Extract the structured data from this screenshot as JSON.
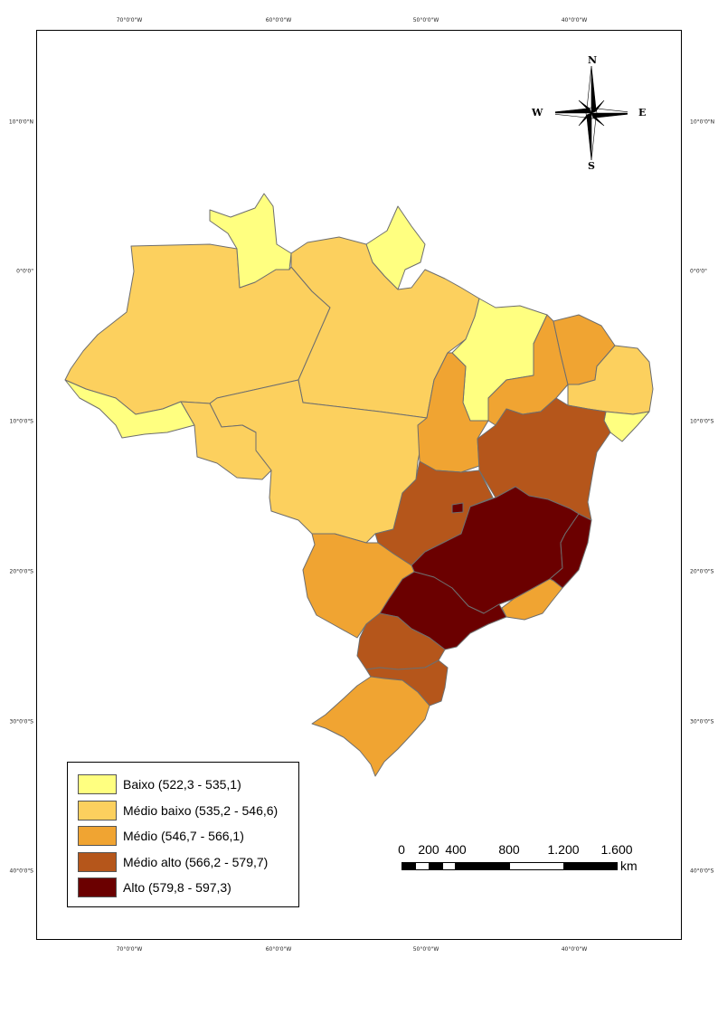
{
  "map": {
    "colors": {
      "baixo": "#ffff80",
      "medio_baixo": "#fcd05e",
      "medio": "#f0a432",
      "medio_alto": "#b5561b",
      "alto": "#6b0000",
      "border": "#6e6e6e"
    }
  },
  "graticule": {
    "top": [
      "70°0'0\"W",
      "60°0'0\"W",
      "50°0'0\"W",
      "40°0'0\"W"
    ],
    "bottom": [
      "70°0'0\"W",
      "60°0'0\"W",
      "50°0'0\"W",
      "40°0'0\"W"
    ],
    "left": [
      "10°0'0\"N",
      "0°0'0\"",
      "10°0'0\"S",
      "20°0'0\"S",
      "30°0'0\"S",
      "40°0'0\"S"
    ],
    "right": [
      "10°0'0\"N",
      "0°0'0\"",
      "10°0'0\"S",
      "20°0'0\"S",
      "30°0'0\"S",
      "40°0'0\"S"
    ]
  },
  "compass": {
    "n": "N",
    "s": "S",
    "e": "E",
    "w": "W"
  },
  "legend": {
    "items": [
      {
        "label": "Baixo (522,3 - 535,1)",
        "color": "#ffff80"
      },
      {
        "label": "Médio baixo (535,2 - 546,6)",
        "color": "#fcd05e"
      },
      {
        "label": "Médio (546,7 - 566,1)",
        "color": "#f0a432"
      },
      {
        "label": "Médio alto (566,2 - 579,7)",
        "color": "#b5561b"
      },
      {
        "label": "Alto (579,8 - 597,3)",
        "color": "#6b0000"
      }
    ]
  },
  "scale": {
    "ticks": [
      "0",
      "200",
      "400",
      "800",
      "1.200",
      "1.600"
    ],
    "unit": "km"
  }
}
